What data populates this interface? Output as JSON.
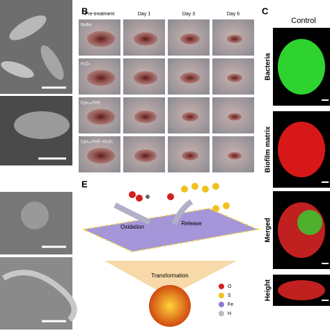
{
  "panel_b": {
    "label": "B",
    "columns": [
      "Pre-treatment",
      "Day 1",
      "Day 3",
      "Day 6"
    ],
    "rows": [
      "Buffer",
      "H₂O₂",
      "Cys₁₈-FeS",
      "Cys₁₈-FeS +H₂O₂"
    ]
  },
  "panel_c": {
    "label": "C",
    "title": "Control",
    "rows": [
      "Bacteria",
      "Biofilm matrix",
      "Merged",
      "Height"
    ]
  },
  "panel_e": {
    "label": "E",
    "steps": [
      "Oxidation",
      "Release",
      "Transformation"
    ],
    "legend": [
      "O",
      "S",
      "Fe",
      "H"
    ]
  }
}
